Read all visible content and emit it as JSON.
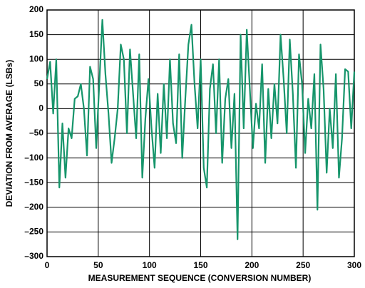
{
  "chart_data": {
    "type": "line",
    "xlabel": "MEASUREMENT SEQUENCE (CONVERSION NUMBER)",
    "ylabel": "DEVIATION FROM AVERAGE (LSBs)",
    "x": [
      0,
      3,
      6,
      9,
      12,
      15,
      18,
      21,
      24,
      27,
      30,
      33,
      36,
      39,
      42,
      45,
      48,
      51,
      54,
      57,
      60,
      63,
      66,
      69,
      72,
      75,
      78,
      81,
      84,
      87,
      90,
      93,
      96,
      99,
      102,
      105,
      108,
      111,
      114,
      117,
      120,
      123,
      126,
      129,
      132,
      135,
      138,
      141,
      144,
      147,
      150,
      153,
      156,
      159,
      162,
      165,
      168,
      171,
      174,
      177,
      180,
      183,
      186,
      189,
      192,
      195,
      198,
      201,
      204,
      207,
      210,
      213,
      216,
      219,
      222,
      225,
      228,
      231,
      234,
      237,
      240,
      243,
      246,
      249,
      252,
      255,
      258,
      261,
      264,
      267,
      270,
      273,
      276,
      279,
      282,
      285,
      288,
      291,
      294,
      297,
      300
    ],
    "series": [
      {
        "name": "deviation",
        "color": "#16956b",
        "values": [
          60,
          95,
          -10,
          100,
          -160,
          -30,
          -140,
          -40,
          -60,
          20,
          25,
          50,
          0,
          -95,
          85,
          60,
          -80,
          50,
          180,
          70,
          -10,
          -110,
          -60,
          0,
          130,
          100,
          -50,
          120,
          30,
          -60,
          110,
          -140,
          -20,
          60,
          -40,
          -120,
          30,
          -90,
          50,
          -60,
          100,
          -30,
          -70,
          110,
          -100,
          20,
          130,
          170,
          50,
          -40,
          100,
          -120,
          -160,
          40,
          90,
          -50,
          100,
          -110,
          20,
          60,
          -80,
          30,
          -265,
          150,
          -40,
          160,
          40,
          -80,
          10,
          -40,
          90,
          -110,
          40,
          -60,
          50,
          -30,
          150,
          60,
          -50,
          140,
          30,
          -120,
          110,
          50,
          -90,
          20,
          -40,
          70,
          -205,
          130,
          40,
          -130,
          0,
          -80,
          70,
          -140,
          -60,
          80,
          75,
          -40,
          75
        ]
      }
    ],
    "xlim": [
      0,
      300
    ],
    "xticks": [
      0,
      50,
      100,
      150,
      200,
      250,
      300
    ],
    "ylim": [
      -300,
      200
    ],
    "yticks": [
      {
        "value": -300,
        "label": "–300"
      },
      {
        "value": -250,
        "label": "–250"
      },
      {
        "value": -200,
        "label": "–200"
      },
      {
        "value": -150,
        "label": "–150"
      },
      {
        "value": -100,
        "label": "–100"
      },
      {
        "value": -50,
        "label": "–50"
      },
      0,
      50,
      100,
      150,
      200
    ],
    "grid": true
  }
}
